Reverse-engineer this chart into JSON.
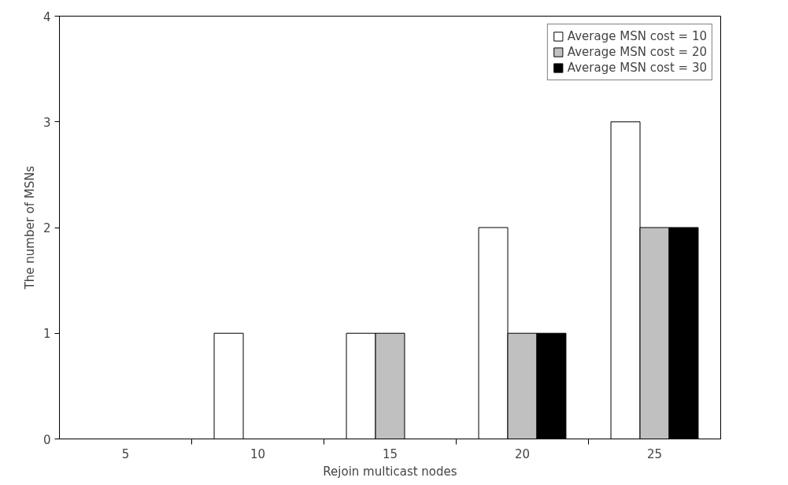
{
  "chart_data": {
    "type": "bar",
    "xlabel": "Rejoin multicast nodes",
    "ylabel": "The number of MSNs",
    "categories": [
      "5",
      "10",
      "15",
      "20",
      "25"
    ],
    "series": [
      {
        "name": "Average MSN cost = 10",
        "color": "#ffffff",
        "values": [
          0,
          1,
          1,
          2,
          3
        ]
      },
      {
        "name": "Average MSN cost = 20",
        "color": "#c0c0c0",
        "values": [
          0,
          0,
          1,
          1,
          2
        ]
      },
      {
        "name": "Average MSN cost = 30",
        "color": "#000000",
        "values": [
          0,
          0,
          0,
          1,
          2
        ]
      }
    ],
    "ylim": [
      0,
      4
    ],
    "yticks": [
      0,
      1,
      2,
      3,
      4
    ],
    "grid": false,
    "legend": "top right"
  }
}
